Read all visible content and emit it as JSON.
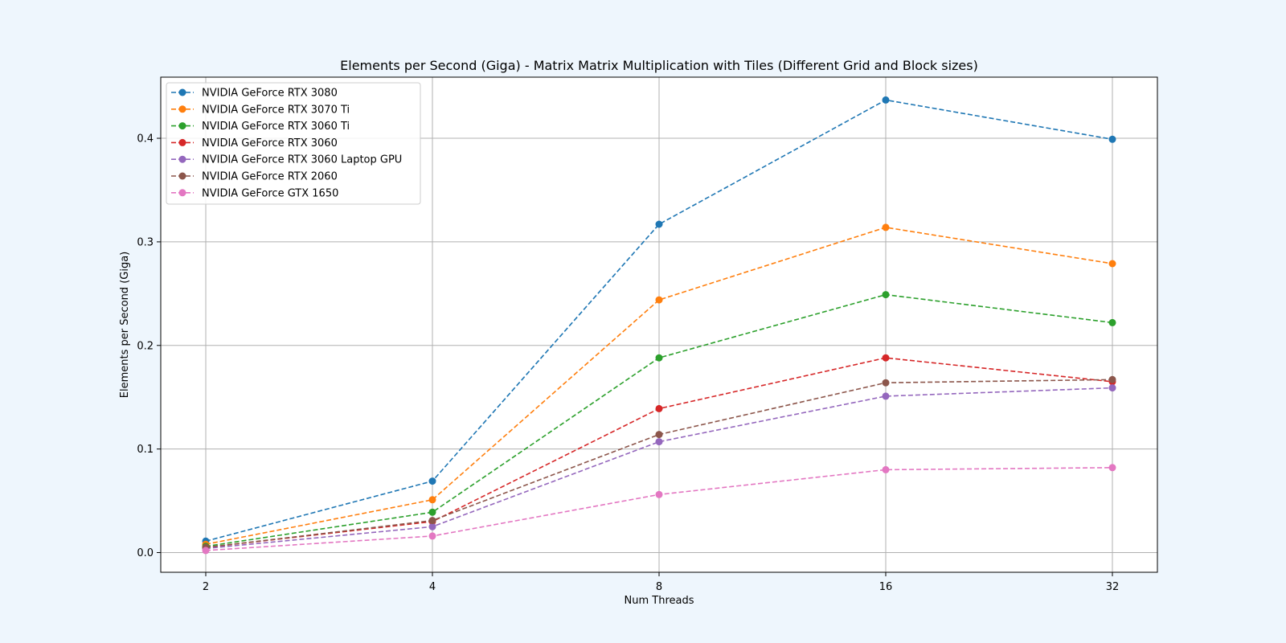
{
  "chart_data": {
    "type": "line",
    "title": "Elements per Second (Giga) - Matrix Matrix Multiplication with Tiles (Different Grid and Block sizes)",
    "xlabel": "Num Threads",
    "ylabel": "Elements per Second (Giga)",
    "x_scale": "log2",
    "x": [
      2,
      4,
      8,
      16,
      32
    ],
    "x_tick_labels": [
      "2",
      "4",
      "8",
      "16",
      "32"
    ],
    "ylim": [
      -0.019,
      0.459
    ],
    "y_ticks": [
      0.0,
      0.1,
      0.2,
      0.3,
      0.4
    ],
    "y_tick_labels": [
      "0.0",
      "0.1",
      "0.2",
      "0.3",
      "0.4"
    ],
    "grid": true,
    "legend_position": "top-left",
    "line_style": "dashed",
    "marker": "circle",
    "series": [
      {
        "name": "NVIDIA GeForce RTX 3080",
        "color": "#1f77b4",
        "values": [
          0.011,
          0.069,
          0.317,
          0.437,
          0.399
        ]
      },
      {
        "name": "NVIDIA GeForce RTX 3070 Ti",
        "color": "#ff7f0e",
        "values": [
          0.008,
          0.051,
          0.244,
          0.314,
          0.279
        ]
      },
      {
        "name": "NVIDIA GeForce RTX 3060 Ti",
        "color": "#2ca02c",
        "values": [
          0.006,
          0.039,
          0.188,
          0.249,
          0.222
        ]
      },
      {
        "name": "NVIDIA GeForce RTX 3060",
        "color": "#d62728",
        "values": [
          0.005,
          0.03,
          0.139,
          0.188,
          0.165
        ]
      },
      {
        "name": "NVIDIA GeForce RTX 3060 Laptop GPU",
        "color": "#9467bd",
        "values": [
          0.004,
          0.025,
          0.107,
          0.151,
          0.159
        ]
      },
      {
        "name": "NVIDIA GeForce RTX 2060",
        "color": "#8c564b",
        "values": [
          0.005,
          0.031,
          0.114,
          0.164,
          0.167
        ]
      },
      {
        "name": "NVIDIA GeForce GTX 1650",
        "color": "#e377c2",
        "values": [
          0.002,
          0.016,
          0.056,
          0.08,
          0.082
        ]
      }
    ]
  }
}
